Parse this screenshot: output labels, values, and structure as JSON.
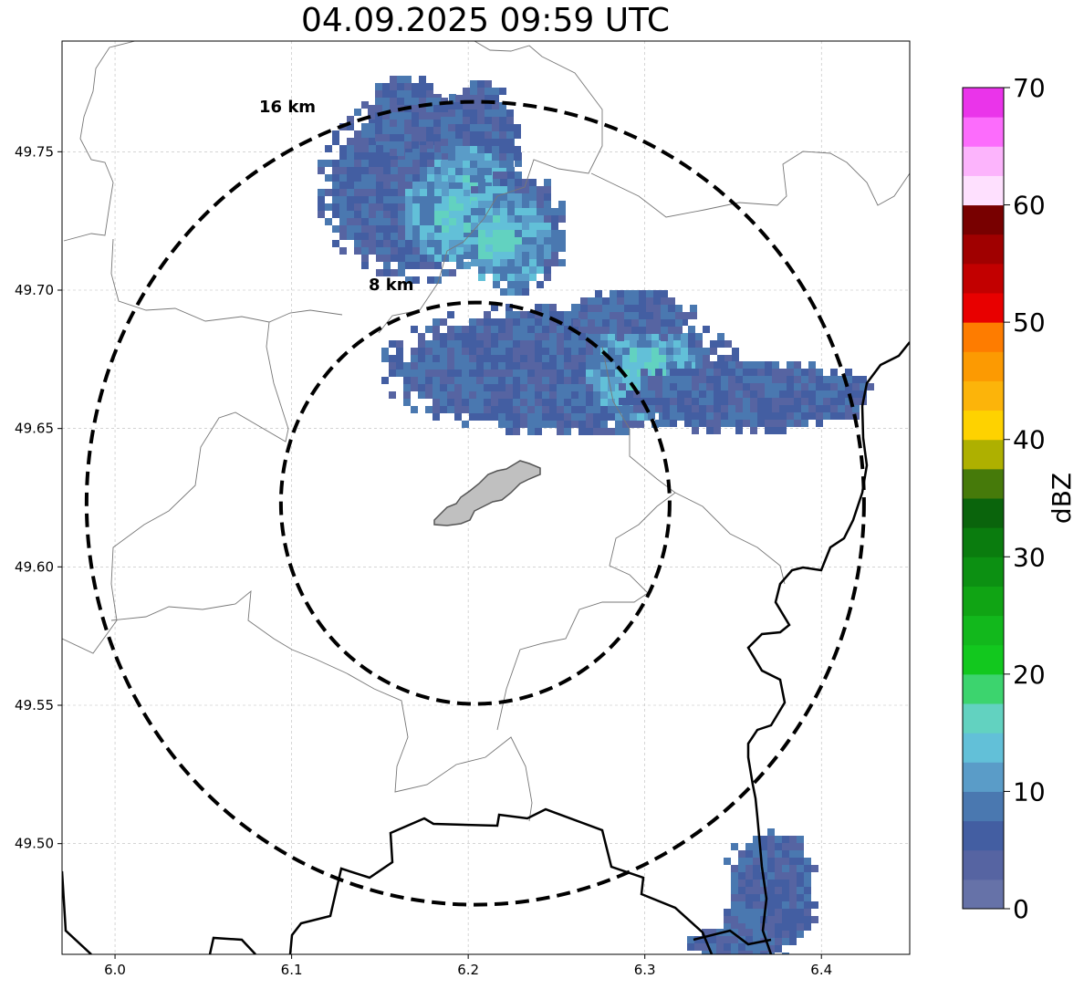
{
  "title": "04.09.2025 09:59 UTC",
  "map": {
    "x_range": [
      5.97,
      6.45
    ],
    "y_range": [
      49.46,
      49.79
    ],
    "x_ticks": [
      {
        "value": 6.0,
        "label": "6.0"
      },
      {
        "value": 6.1,
        "label": "6.1"
      },
      {
        "value": 6.2,
        "label": "6.2"
      },
      {
        "value": 6.3,
        "label": "6.3"
      },
      {
        "value": 6.4,
        "label": "6.4"
      }
    ],
    "y_ticks": [
      {
        "value": 49.5,
        "label": "49.50"
      },
      {
        "value": 49.55,
        "label": "49.55"
      },
      {
        "value": 49.6,
        "label": "49.60"
      },
      {
        "value": 49.65,
        "label": "49.65"
      },
      {
        "value": 49.7,
        "label": "49.70"
      },
      {
        "value": 49.75,
        "label": "49.75"
      }
    ],
    "grid": true,
    "center": {
      "lon": 6.204,
      "lat": 49.623
    },
    "range_rings": [
      {
        "label": "8 km"
      },
      {
        "label": "16 km"
      }
    ]
  },
  "colorbar": {
    "label": "dBZ",
    "min": 0,
    "max": 70,
    "ticks": [
      {
        "value": 0,
        "label": "0"
      },
      {
        "value": 10,
        "label": "10"
      },
      {
        "value": 20,
        "label": "20"
      },
      {
        "value": 30,
        "label": "30"
      },
      {
        "value": 40,
        "label": "40"
      },
      {
        "value": 50,
        "label": "50"
      },
      {
        "value": 60,
        "label": "60"
      },
      {
        "value": 70,
        "label": "70"
      }
    ],
    "colors": [
      "#6672a8",
      "#5664a2",
      "#435ea2",
      "#4a78b0",
      "#5a9cc8",
      "#62c0d8",
      "#62d2c0",
      "#3cd46e",
      "#12c81e",
      "#12b81c",
      "#10a414",
      "#0c9012",
      "#0a7c0e",
      "#0a640c",
      "#467a0a",
      "#aeb000",
      "#fed200",
      "#fcb40a",
      "#fc9a02",
      "#fe7c00",
      "#e80000",
      "#c20000",
      "#a00000",
      "#780000",
      "#fee0fe",
      "#fcb4fc",
      "#fc6cfc",
      "#ea34ea"
    ]
  }
}
